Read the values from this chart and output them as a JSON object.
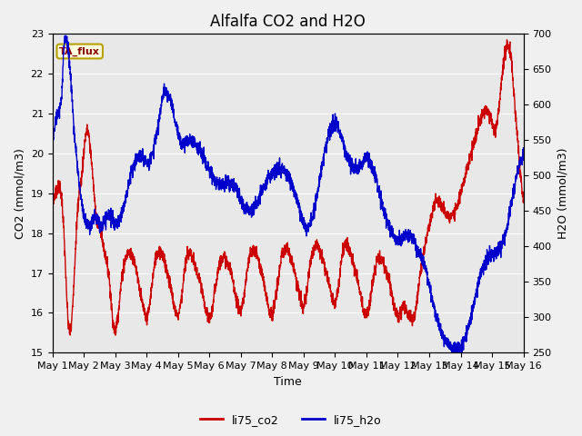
{
  "title": "Alfalfa CO2 and H2O",
  "xlabel": "Time",
  "ylabel_left": "CO2 (mmol/m3)",
  "ylabel_right": "H2O (mmol/m3)",
  "annotation": "TA_flux",
  "co2_ylim": [
    15.0,
    23.0
  ],
  "h2o_ylim": [
    250,
    700
  ],
  "co2_yticks": [
    15.0,
    16.0,
    17.0,
    18.0,
    19.0,
    20.0,
    21.0,
    22.0,
    23.0
  ],
  "h2o_yticks": [
    250,
    300,
    350,
    400,
    450,
    500,
    550,
    600,
    650,
    700
  ],
  "x_tick_labels": [
    "May 1",
    "May 2",
    "May 3",
    "May 4",
    "May 5",
    "May 6",
    "May 7",
    "May 8",
    "May 9",
    "May 10",
    "May 11",
    "May 12",
    "May 13",
    "May 14",
    "May 15",
    "May 16"
  ],
  "legend_co2_label": "li75_co2",
  "legend_h2o_label": "li75_h2o",
  "co2_color": "#cc0000",
  "h2o_color": "#0000cc",
  "axes_bg": "#e8e8e8",
  "fig_bg": "#f0f0f0",
  "grid_color": "#ffffff",
  "line_width": 1.0,
  "title_fontsize": 12,
  "axis_label_fontsize": 9,
  "tick_fontsize": 8,
  "annotation_fontsize": 8,
  "legend_fontsize": 9,
  "co2_t": [
    0.0,
    0.05,
    0.1,
    0.15,
    0.2,
    0.25,
    0.3,
    0.35,
    0.4,
    0.45,
    0.5,
    0.55,
    0.6,
    0.65,
    0.7,
    0.75,
    0.8,
    0.85,
    0.9,
    0.95,
    1.0,
    1.05,
    1.1,
    1.15,
    1.2,
    1.25,
    1.3,
    1.35,
    1.4,
    1.45,
    1.5,
    1.55,
    1.6,
    1.65,
    1.7,
    1.75,
    1.8,
    1.85,
    1.9,
    1.95,
    2.0,
    2.1,
    2.2,
    2.3,
    2.4,
    2.5,
    2.6,
    2.7,
    2.8,
    2.9,
    3.0,
    3.1,
    3.2,
    3.3,
    3.4,
    3.5,
    3.6,
    3.7,
    3.8,
    3.9,
    4.0,
    4.1,
    4.2,
    4.3,
    4.4,
    4.5,
    4.6,
    4.7,
    4.8,
    4.9,
    5.0,
    5.1,
    5.2,
    5.3,
    5.4,
    5.5,
    5.6,
    5.7,
    5.8,
    5.9,
    6.0,
    6.1,
    6.2,
    6.3,
    6.4,
    6.5,
    6.6,
    6.7,
    6.8,
    6.9,
    7.0,
    7.1,
    7.2,
    7.3,
    7.4,
    7.5,
    7.6,
    7.7,
    7.8,
    7.9,
    8.0,
    8.1,
    8.2,
    8.3,
    8.4,
    8.5,
    8.6,
    8.7,
    8.8,
    8.9,
    9.0,
    9.1,
    9.2,
    9.3,
    9.4,
    9.5,
    9.6,
    9.7,
    9.8,
    9.9,
    10.0,
    10.1,
    10.2,
    10.3,
    10.4,
    10.5,
    10.6,
    10.7,
    10.8,
    10.9,
    11.0,
    11.1,
    11.2,
    11.3,
    11.4,
    11.5,
    11.6,
    11.7,
    11.8,
    11.9,
    12.0,
    12.1,
    12.2,
    12.3,
    12.4,
    12.5,
    12.6,
    12.7,
    12.8,
    12.9,
    13.0,
    13.1,
    13.2,
    13.3,
    13.4,
    13.5,
    13.6,
    13.7,
    13.8,
    13.9,
    14.0,
    14.1,
    14.2,
    14.3,
    14.4,
    14.5,
    14.6,
    14.7,
    14.8,
    14.9,
    15.0
  ],
  "co2_v": [
    18.8,
    18.9,
    19.0,
    19.1,
    19.2,
    19.1,
    18.9,
    18.3,
    17.5,
    16.5,
    15.8,
    15.5,
    15.6,
    16.2,
    17.0,
    17.8,
    18.5,
    19.0,
    19.2,
    19.5,
    20.0,
    20.4,
    20.6,
    20.5,
    20.2,
    19.8,
    19.3,
    18.8,
    18.4,
    18.2,
    18.2,
    18.0,
    17.8,
    17.6,
    17.4,
    17.2,
    17.0,
    16.5,
    16.0,
    15.7,
    15.5,
    16.0,
    16.8,
    17.3,
    17.5,
    17.5,
    17.3,
    17.0,
    16.5,
    16.1,
    15.8,
    16.2,
    16.9,
    17.4,
    17.6,
    17.5,
    17.2,
    16.9,
    16.5,
    16.1,
    15.9,
    16.3,
    17.0,
    17.5,
    17.5,
    17.3,
    17.0,
    16.8,
    16.4,
    16.0,
    15.8,
    16.1,
    16.7,
    17.2,
    17.4,
    17.4,
    17.2,
    17.0,
    16.6,
    16.2,
    16.0,
    16.4,
    17.0,
    17.5,
    17.6,
    17.5,
    17.2,
    16.9,
    16.5,
    16.1,
    15.9,
    16.3,
    16.9,
    17.4,
    17.6,
    17.6,
    17.4,
    17.1,
    16.7,
    16.3,
    16.1,
    16.5,
    17.2,
    17.6,
    17.7,
    17.6,
    17.4,
    17.1,
    16.8,
    16.4,
    16.2,
    16.6,
    17.3,
    17.7,
    17.7,
    17.5,
    17.2,
    16.9,
    16.5,
    16.1,
    15.9,
    16.2,
    16.8,
    17.2,
    17.4,
    17.3,
    17.1,
    16.9,
    16.5,
    16.1,
    15.9,
    16.0,
    16.2,
    16.0,
    15.9,
    15.8,
    16.2,
    16.9,
    17.4,
    17.8,
    18.2,
    18.5,
    18.8,
    18.8,
    18.7,
    18.5,
    18.4,
    18.4,
    18.5,
    18.7,
    19.0,
    19.3,
    19.6,
    19.9,
    20.2,
    20.5,
    20.8,
    21.0,
    21.1,
    21.0,
    20.8,
    20.5,
    21.0,
    21.8,
    22.5,
    22.8,
    22.5,
    21.5,
    20.5,
    19.5,
    18.8
  ],
  "h2o_t": [
    0.0,
    0.05,
    0.1,
    0.15,
    0.2,
    0.25,
    0.3,
    0.35,
    0.4,
    0.45,
    0.5,
    0.55,
    0.6,
    0.65,
    0.7,
    0.75,
    0.8,
    0.85,
    0.9,
    0.95,
    1.0,
    1.05,
    1.1,
    1.15,
    1.2,
    1.25,
    1.3,
    1.35,
    1.4,
    1.45,
    1.5,
    1.55,
    1.6,
    1.65,
    1.7,
    1.75,
    1.8,
    1.85,
    1.9,
    1.95,
    2.0,
    2.1,
    2.2,
    2.3,
    2.4,
    2.5,
    2.6,
    2.7,
    2.8,
    2.9,
    3.0,
    3.1,
    3.2,
    3.3,
    3.4,
    3.5,
    3.6,
    3.7,
    3.8,
    3.9,
    4.0,
    4.1,
    4.2,
    4.3,
    4.4,
    4.5,
    4.6,
    4.7,
    4.8,
    4.9,
    5.0,
    5.1,
    5.2,
    5.3,
    5.4,
    5.5,
    5.6,
    5.7,
    5.8,
    5.9,
    6.0,
    6.1,
    6.2,
    6.3,
    6.4,
    6.5,
    6.6,
    6.7,
    6.8,
    6.9,
    7.0,
    7.1,
    7.2,
    7.3,
    7.4,
    7.5,
    7.6,
    7.7,
    7.8,
    7.9,
    8.0,
    8.1,
    8.2,
    8.3,
    8.4,
    8.5,
    8.6,
    8.7,
    8.8,
    8.9,
    9.0,
    9.1,
    9.2,
    9.3,
    9.4,
    9.5,
    9.6,
    9.7,
    9.8,
    9.9,
    10.0,
    10.1,
    10.2,
    10.3,
    10.4,
    10.5,
    10.6,
    10.7,
    10.8,
    10.9,
    11.0,
    11.1,
    11.2,
    11.3,
    11.4,
    11.5,
    11.6,
    11.7,
    11.8,
    11.9,
    12.0,
    12.1,
    12.2,
    12.3,
    12.4,
    12.5,
    12.6,
    12.7,
    12.8,
    12.9,
    13.0,
    13.1,
    13.2,
    13.3,
    13.4,
    13.5,
    13.6,
    13.7,
    13.8,
    13.9,
    14.0,
    14.1,
    14.2,
    14.3,
    14.4,
    14.5,
    14.6,
    14.7,
    14.8,
    14.9,
    15.0
  ],
  "h2o_v": [
    540,
    560,
    575,
    585,
    590,
    600,
    610,
    670,
    693,
    690,
    680,
    660,
    630,
    595,
    560,
    535,
    510,
    490,
    475,
    460,
    445,
    435,
    430,
    428,
    430,
    435,
    440,
    445,
    440,
    435,
    430,
    428,
    430,
    435,
    440,
    445,
    448,
    445,
    440,
    435,
    430,
    435,
    445,
    460,
    480,
    500,
    515,
    525,
    530,
    525,
    515,
    520,
    535,
    555,
    575,
    610,
    620,
    615,
    600,
    580,
    560,
    548,
    545,
    548,
    550,
    548,
    542,
    535,
    525,
    515,
    505,
    498,
    492,
    490,
    488,
    490,
    492,
    490,
    485,
    478,
    468,
    458,
    452,
    450,
    452,
    460,
    470,
    480,
    490,
    498,
    503,
    508,
    510,
    510,
    507,
    500,
    490,
    478,
    465,
    450,
    435,
    425,
    430,
    445,
    465,
    490,
    515,
    540,
    560,
    570,
    575,
    570,
    555,
    540,
    525,
    515,
    510,
    510,
    515,
    520,
    525,
    520,
    510,
    495,
    478,
    460,
    445,
    432,
    420,
    412,
    408,
    410,
    415,
    418,
    415,
    408,
    400,
    390,
    380,
    365,
    345,
    325,
    305,
    290,
    278,
    268,
    262,
    258,
    256,
    255,
    258,
    265,
    278,
    295,
    315,
    335,
    355,
    370,
    380,
    385,
    388,
    390,
    395,
    402,
    415,
    432,
    455,
    480,
    505,
    520,
    530
  ]
}
